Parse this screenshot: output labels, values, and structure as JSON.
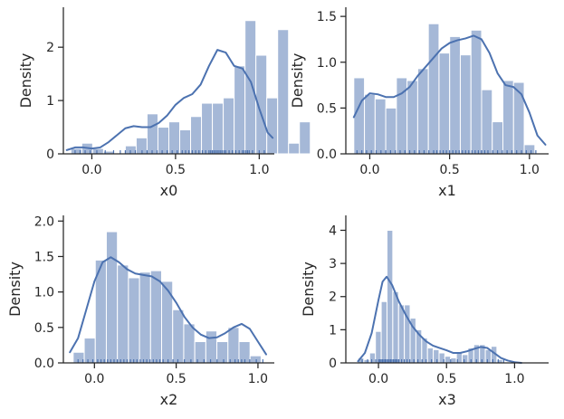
{
  "chart_data": [
    {
      "type": "bar",
      "subtype": "histogram-with-kde-and-rug",
      "xlabel": "x0",
      "ylabel": "Density",
      "xlim": [
        -0.17,
        1.09
      ],
      "ylim": [
        0,
        2.75
      ],
      "xticks": [
        "0.0",
        "0.5",
        "1.0"
      ],
      "yticks": [
        "0",
        "1",
        "2"
      ],
      "bin_start": -0.125,
      "bin_width": 0.065,
      "values": [
        0.1,
        0.2,
        0.1,
        0.05,
        0.0,
        0.15,
        0.3,
        0.75,
        0.5,
        0.6,
        0.45,
        0.7,
        0.95,
        0.95,
        1.05,
        1.65,
        2.5,
        1.85,
        1.05,
        2.33,
        0.2,
        0.6
      ],
      "kde": {
        "x": [
          -0.15,
          -0.1,
          -0.05,
          0.0,
          0.05,
          0.1,
          0.15,
          0.2,
          0.25,
          0.3,
          0.35,
          0.4,
          0.45,
          0.5,
          0.55,
          0.6,
          0.65,
          0.7,
          0.75,
          0.8,
          0.85,
          0.9,
          0.95,
          1.0,
          1.05,
          1.08
        ],
        "y": [
          0.07,
          0.12,
          0.12,
          0.1,
          0.12,
          0.22,
          0.35,
          0.48,
          0.52,
          0.5,
          0.5,
          0.58,
          0.72,
          0.92,
          1.05,
          1.12,
          1.3,
          1.65,
          1.95,
          1.9,
          1.65,
          1.6,
          1.35,
          0.85,
          0.4,
          0.3
        ]
      },
      "rug": [
        -0.1,
        -0.07,
        -0.04,
        -0.01,
        0.03,
        0.08,
        0.13,
        0.17,
        0.2,
        0.23,
        0.26,
        0.3,
        0.33,
        0.36,
        0.39,
        0.42,
        0.45,
        0.48,
        0.51,
        0.54,
        0.56,
        0.58,
        0.6,
        0.62,
        0.64,
        0.66,
        0.68,
        0.7,
        0.71,
        0.72,
        0.73,
        0.74,
        0.75,
        0.76,
        0.77,
        0.78,
        0.79,
        0.8,
        0.82,
        0.84,
        0.86,
        0.88,
        0.9,
        0.91,
        0.92,
        0.93,
        0.94,
        0.96,
        1.0,
        1.03
      ]
    },
    {
      "type": "bar",
      "subtype": "histogram-with-kde-and-rug",
      "xlabel": "x1",
      "ylabel": "Density",
      "xlim": [
        -0.15,
        1.12
      ],
      "ylim": [
        0,
        1.6
      ],
      "xticks": [
        "0.0",
        "0.5",
        "1.0"
      ],
      "yticks": [
        "0.0",
        "0.5",
        "1.0",
        "1.5"
      ],
      "bin_start": -0.1,
      "bin_width": 0.0667,
      "values": [
        0.83,
        0.65,
        0.6,
        0.5,
        0.83,
        0.8,
        0.93,
        1.42,
        1.1,
        1.28,
        1.08,
        1.35,
        0.7,
        0.35,
        0.8,
        0.78,
        0.1
      ],
      "kde": {
        "x": [
          -0.1,
          -0.05,
          0.0,
          0.05,
          0.1,
          0.15,
          0.2,
          0.25,
          0.3,
          0.35,
          0.4,
          0.45,
          0.5,
          0.55,
          0.6,
          0.65,
          0.7,
          0.75,
          0.8,
          0.85,
          0.9,
          0.95,
          1.0,
          1.05,
          1.1
        ],
        "y": [
          0.4,
          0.58,
          0.66,
          0.65,
          0.62,
          0.62,
          0.66,
          0.73,
          0.85,
          0.95,
          1.05,
          1.15,
          1.21,
          1.24,
          1.26,
          1.29,
          1.25,
          1.1,
          0.88,
          0.75,
          0.73,
          0.65,
          0.45,
          0.2,
          0.1
        ]
      },
      "rug": [
        -0.08,
        -0.05,
        -0.02,
        0.01,
        0.04,
        0.07,
        0.1,
        0.13,
        0.16,
        0.19,
        0.22,
        0.25,
        0.28,
        0.31,
        0.34,
        0.37,
        0.4,
        0.42,
        0.44,
        0.46,
        0.48,
        0.5,
        0.52,
        0.54,
        0.56,
        0.58,
        0.6,
        0.62,
        0.64,
        0.66,
        0.68,
        0.7,
        0.72,
        0.74,
        0.77,
        0.8,
        0.83,
        0.86,
        0.89,
        0.92,
        0.95,
        0.98,
        1.01,
        1.04
      ]
    },
    {
      "type": "bar",
      "subtype": "histogram-with-kde-and-rug",
      "xlabel": "x2",
      "ylabel": "Density",
      "xlim": [
        -0.19,
        1.1
      ],
      "ylim": [
        0,
        2.08
      ],
      "xticks": [
        "0.0",
        "0.5",
        "1.0"
      ],
      "yticks": [
        "0.0",
        "0.5",
        "1.0",
        "1.5",
        "2.0"
      ],
      "bin_start": -0.13,
      "bin_width": 0.0676,
      "values": [
        0.15,
        0.35,
        1.45,
        1.85,
        1.38,
        1.2,
        1.28,
        1.3,
        1.15,
        0.75,
        0.55,
        0.3,
        0.45,
        0.3,
        0.5,
        0.3,
        0.1
      ],
      "kde": {
        "x": [
          -0.15,
          -0.1,
          -0.05,
          0.0,
          0.05,
          0.1,
          0.15,
          0.2,
          0.25,
          0.3,
          0.35,
          0.4,
          0.45,
          0.5,
          0.55,
          0.6,
          0.65,
          0.7,
          0.75,
          0.8,
          0.85,
          0.9,
          0.95,
          1.0,
          1.05
        ],
        "y": [
          0.15,
          0.35,
          0.75,
          1.15,
          1.42,
          1.49,
          1.42,
          1.32,
          1.26,
          1.24,
          1.22,
          1.15,
          1.02,
          0.85,
          0.65,
          0.5,
          0.4,
          0.35,
          0.36,
          0.42,
          0.5,
          0.55,
          0.48,
          0.3,
          0.12
        ]
      },
      "rug": [
        -0.1,
        -0.07,
        -0.04,
        -0.01,
        0.02,
        0.04,
        0.06,
        0.08,
        0.1,
        0.12,
        0.14,
        0.16,
        0.18,
        0.2,
        0.22,
        0.24,
        0.26,
        0.28,
        0.3,
        0.32,
        0.34,
        0.36,
        0.38,
        0.4,
        0.42,
        0.45,
        0.48,
        0.51,
        0.55,
        0.59,
        0.63,
        0.67,
        0.71,
        0.75,
        0.79,
        0.83,
        0.86,
        0.88,
        0.9,
        0.92,
        0.95,
        0.99,
        1.03
      ]
    },
    {
      "type": "bar",
      "subtype": "histogram-with-kde-and-rug",
      "xlabel": "x3",
      "ylabel": "Density",
      "xlim": [
        -0.24,
        1.25
      ],
      "ylim": [
        0,
        4.45
      ],
      "xticks": [
        "0.0",
        "0.5",
        "1.0"
      ],
      "yticks": [
        "0",
        "1",
        "2",
        "3",
        "4"
      ],
      "bin_start": -0.15,
      "bin_width": 0.0425,
      "values": [
        0.15,
        0.1,
        0.3,
        0.95,
        1.85,
        4.0,
        2.15,
        1.75,
        1.75,
        1.35,
        1.0,
        0.75,
        0.45,
        0.4,
        0.3,
        0.2,
        0.15,
        0.3,
        0.25,
        0.45,
        0.55,
        0.55,
        0.4,
        0.5,
        0.1
      ],
      "kde": {
        "x": [
          -0.15,
          -0.1,
          -0.05,
          0.0,
          0.03,
          0.06,
          0.1,
          0.15,
          0.2,
          0.25,
          0.3,
          0.35,
          0.4,
          0.45,
          0.5,
          0.55,
          0.6,
          0.65,
          0.7,
          0.75,
          0.8,
          0.85,
          0.9,
          0.95,
          1.0,
          1.05
        ],
        "y": [
          0.05,
          0.3,
          0.9,
          1.9,
          2.45,
          2.6,
          2.35,
          1.85,
          1.45,
          1.1,
          0.85,
          0.65,
          0.52,
          0.45,
          0.38,
          0.3,
          0.3,
          0.35,
          0.42,
          0.48,
          0.45,
          0.3,
          0.15,
          0.07,
          0.02,
          0.0
        ]
      },
      "rug": [
        -0.12,
        -0.08,
        -0.05,
        -0.02,
        0.0,
        0.01,
        0.02,
        0.03,
        0.04,
        0.05,
        0.06,
        0.07,
        0.08,
        0.09,
        0.1,
        0.11,
        0.12,
        0.13,
        0.14,
        0.15,
        0.17,
        0.19,
        0.21,
        0.23,
        0.26,
        0.29,
        0.32,
        0.35,
        0.39,
        0.43,
        0.48,
        0.53,
        0.58,
        0.63,
        0.68,
        0.72,
        0.76,
        0.8,
        0.84,
        0.88,
        0.92
      ]
    }
  ],
  "colors": {
    "series": "#4c72b0",
    "axis": "#262626",
    "text": "#262626"
  }
}
